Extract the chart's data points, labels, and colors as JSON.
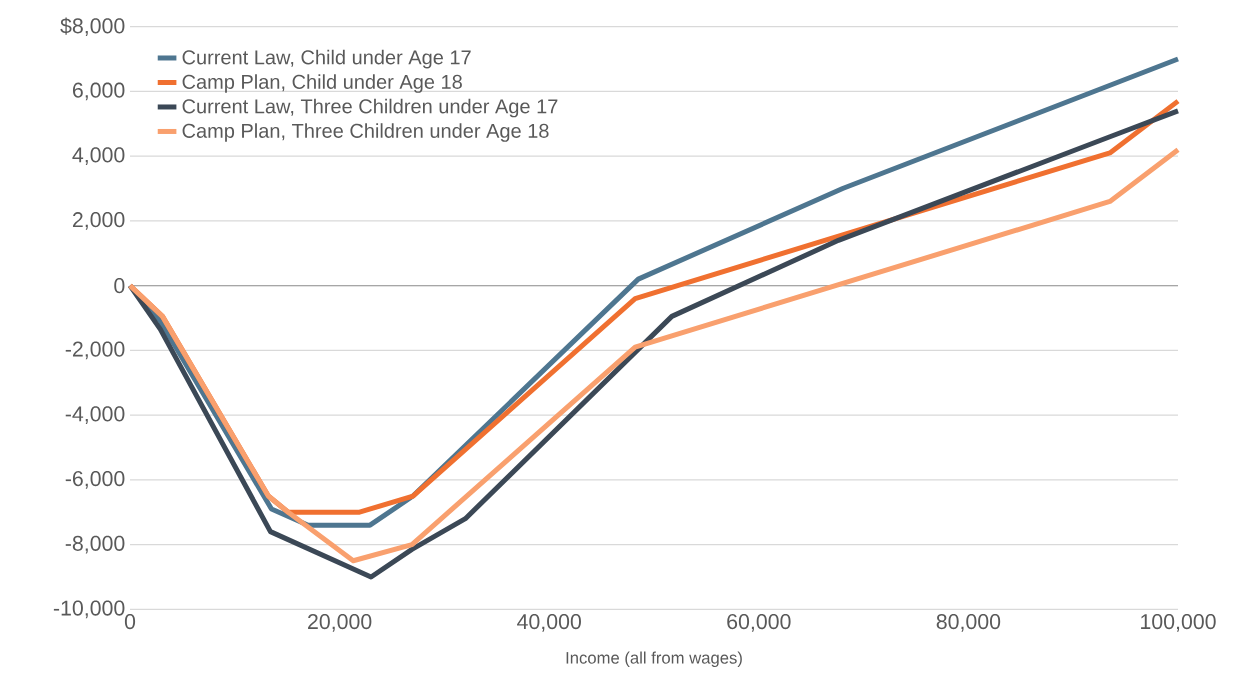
{
  "chart_data": {
    "type": "line",
    "xlabel": "Income (all from wages)",
    "xlim": [
      0,
      100000
    ],
    "ylim": [
      -10000,
      8000
    ],
    "xticks": [
      {
        "value": 0,
        "label": "0"
      },
      {
        "value": 20000,
        "label": "20,000"
      },
      {
        "value": 40000,
        "label": "40,000"
      },
      {
        "value": 60000,
        "label": "60,000"
      },
      {
        "value": 80000,
        "label": "80,000"
      },
      {
        "value": 100000,
        "label": "100,000"
      }
    ],
    "yticks": [
      {
        "value": -10000,
        "label": "-10,000"
      },
      {
        "value": -8000,
        "label": "-8,000"
      },
      {
        "value": -6000,
        "label": "-6,000"
      },
      {
        "value": -4000,
        "label": "-4,000"
      },
      {
        "value": -2000,
        "label": "-2,000"
      },
      {
        "value": 0,
        "label": "0"
      },
      {
        "value": 2000,
        "label": "2,000"
      },
      {
        "value": 4000,
        "label": "4,000"
      },
      {
        "value": 6000,
        "label": "6,000"
      },
      {
        "value": 8000,
        "label": "$8,000"
      }
    ],
    "grid": "y",
    "legend": "top left",
    "marker": "none",
    "line_style": "solid",
    "series": [
      {
        "name": "Current Law, Child under Age 17",
        "color": "#4e7690",
        "x": [
          0,
          2900,
          13500,
          17000,
          22900,
          27000,
          48500,
          68000,
          100000
        ],
        "values": [
          0,
          -1100,
          -6900,
          -7400,
          -7400,
          -6500,
          200,
          3000,
          7000
        ]
      },
      {
        "name": "Camp Plan, Child under Age 18",
        "color": "#f07030",
        "x": [
          0,
          3100,
          13200,
          15100,
          21900,
          27000,
          48200,
          93500,
          100000
        ],
        "values": [
          0,
          -950,
          -6500,
          -7000,
          -7000,
          -6500,
          -400,
          4100,
          5700
        ]
      },
      {
        "name": "Current Law, Three Children under Age 17",
        "color": "#3b4856",
        "x": [
          0,
          2900,
          13400,
          23000,
          26900,
          32000,
          51700,
          67600,
          93500,
          100000
        ],
        "values": [
          0,
          -1350,
          -7600,
          -9000,
          -8150,
          -7200,
          -950,
          1400,
          4600,
          5400
        ]
      },
      {
        "name": "Camp Plan, Three Children under Age 18",
        "color": "#f9a06e",
        "x": [
          0,
          3100,
          13200,
          15100,
          21300,
          26900,
          48200,
          93500,
          100000
        ],
        "values": [
          0,
          -950,
          -6500,
          -7000,
          -8500,
          -8000,
          -1900,
          2600,
          4200
        ]
      }
    ]
  }
}
